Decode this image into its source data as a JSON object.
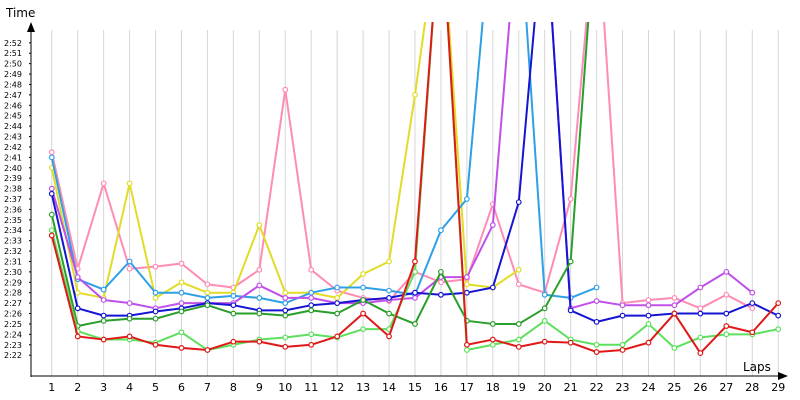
{
  "chart_data": {
    "type": "line",
    "xlabel": "Laps",
    "ylabel": "Time",
    "x": [
      1,
      2,
      3,
      4,
      5,
      6,
      7,
      8,
      9,
      10,
      11,
      12,
      13,
      14,
      15,
      16,
      17,
      18,
      19,
      20,
      21,
      22,
      23,
      24,
      25,
      26,
      27,
      28,
      29
    ],
    "y_range_seconds": [
      140,
      174
    ],
    "x_range": [
      0.2,
      29.3
    ],
    "y_tick_labels": [
      "2:22",
      "2:23",
      "2:24",
      "2:25",
      "2:26",
      "2:27",
      "2:28",
      "2:29",
      "2:30",
      "2:31",
      "2:32",
      "2:33",
      "2:34",
      "2:35",
      "2:36",
      "2:37",
      "2:38",
      "2:39",
      "2:40",
      "2:41",
      "2:42",
      "2:43",
      "2:44",
      "2:45",
      "2:46",
      "2:47",
      "2:48",
      "2:49",
      "2:50",
      "2:51",
      "2:52"
    ],
    "y_tick_values": [
      142,
      143,
      144,
      145,
      146,
      147,
      148,
      149,
      150,
      151,
      152,
      153,
      154,
      155,
      156,
      157,
      158,
      159,
      160,
      161,
      162,
      163,
      164,
      165,
      166,
      167,
      168,
      169,
      170,
      171,
      172
    ],
    "x_tick_labels": [
      "1",
      "2",
      "3",
      "4",
      "5",
      "6",
      "7",
      "8",
      "9",
      "10",
      "11",
      "12",
      "13",
      "14",
      "15",
      "16",
      "17",
      "18",
      "19",
      "20",
      "21",
      "22",
      "23",
      "24",
      "25",
      "26",
      "27",
      "28",
      "29"
    ],
    "grid": "vertical",
    "series": [
      {
        "color": "#ff8cb4",
        "values": [
          161.5,
          150.3,
          158.5,
          150.3,
          150.5,
          150.8,
          148.8,
          148.5,
          150.2,
          167.5,
          150.2,
          148.2,
          147.5,
          147.2,
          150.0,
          149.0,
          149.3,
          156.5,
          148.8,
          148.0,
          157.0,
          185,
          147.0,
          147.3,
          147.5,
          146.5,
          147.8,
          146.5,
          null
        ]
      },
      {
        "color": "#e0dc28",
        "values": [
          160,
          148,
          147.5,
          158.5,
          147.5,
          149,
          148,
          148,
          154.5,
          148,
          148,
          147.5,
          149.8,
          151,
          167,
          185,
          148.8,
          148.5,
          150.2,
          null,
          null,
          null,
          null,
          null,
          null,
          null,
          null,
          null,
          null
        ]
      },
      {
        "color": "#2ea0e6",
        "values": [
          161.0,
          149.3,
          148.3,
          151.0,
          148.0,
          148.0,
          147.5,
          147.7,
          147.5,
          147.0,
          148.0,
          148.5,
          148.5,
          148.2,
          147.8,
          154.0,
          157.0,
          185,
          185,
          147.8,
          147.5,
          148.5,
          null,
          null,
          null,
          null,
          null,
          null,
          null
        ]
      },
      {
        "color": "#c050e8",
        "values": [
          158.0,
          149.5,
          147.3,
          147.0,
          146.5,
          147.0,
          147.0,
          147.0,
          148.7,
          147.5,
          147.5,
          147.0,
          147.0,
          147.3,
          147.5,
          149.5,
          149.5,
          154.5,
          185,
          185,
          146.5,
          147.2,
          146.8,
          146.8,
          146.8,
          148.5,
          150.0,
          148.0,
          null
        ]
      },
      {
        "color": "#1414d2",
        "values": [
          157.5,
          146.5,
          145.8,
          145.8,
          146.2,
          146.5,
          147.0,
          146.8,
          146.3,
          146.3,
          146.8,
          147.0,
          147.3,
          147.5,
          148.0,
          147.8,
          148.0,
          148.5,
          156.7,
          185,
          146.3,
          145.2,
          145.8,
          145.8,
          146.0,
          146.0,
          146.0,
          147.0,
          145.8
        ]
      },
      {
        "color": "#2a9e2a",
        "values": [
          155.5,
          144.8,
          145.3,
          145.5,
          145.5,
          146.2,
          146.8,
          146.0,
          146.0,
          145.8,
          146.3,
          146.0,
          147.3,
          146.0,
          145.0,
          150.0,
          145.3,
          145.0,
          145.0,
          146.5,
          151.0,
          185,
          null,
          null,
          null,
          null,
          null,
          null,
          null
        ]
      },
      {
        "color": "#5ee05e",
        "values": [
          154.0,
          144.3,
          143.5,
          143.5,
          143.2,
          144.2,
          142.5,
          143.0,
          143.5,
          143.7,
          144.0,
          143.7,
          144.5,
          144.5,
          150.0,
          185,
          142.5,
          143.0,
          143.5,
          145.3,
          143.5,
          143.0,
          143.0,
          145.0,
          142.7,
          143.7,
          144.0,
          144.0,
          144.5
        ]
      },
      {
        "color": "#e01818",
        "values": [
          153.5,
          143.8,
          143.5,
          143.8,
          143.0,
          142.7,
          142.5,
          143.3,
          143.3,
          142.8,
          143.0,
          143.8,
          146.0,
          143.8,
          151.0,
          185,
          143.0,
          143.5,
          142.8,
          143.3,
          143.2,
          142.3,
          142.5,
          143.2,
          146.0,
          142.2,
          144.8,
          144.2,
          147.0
        ]
      }
    ]
  }
}
